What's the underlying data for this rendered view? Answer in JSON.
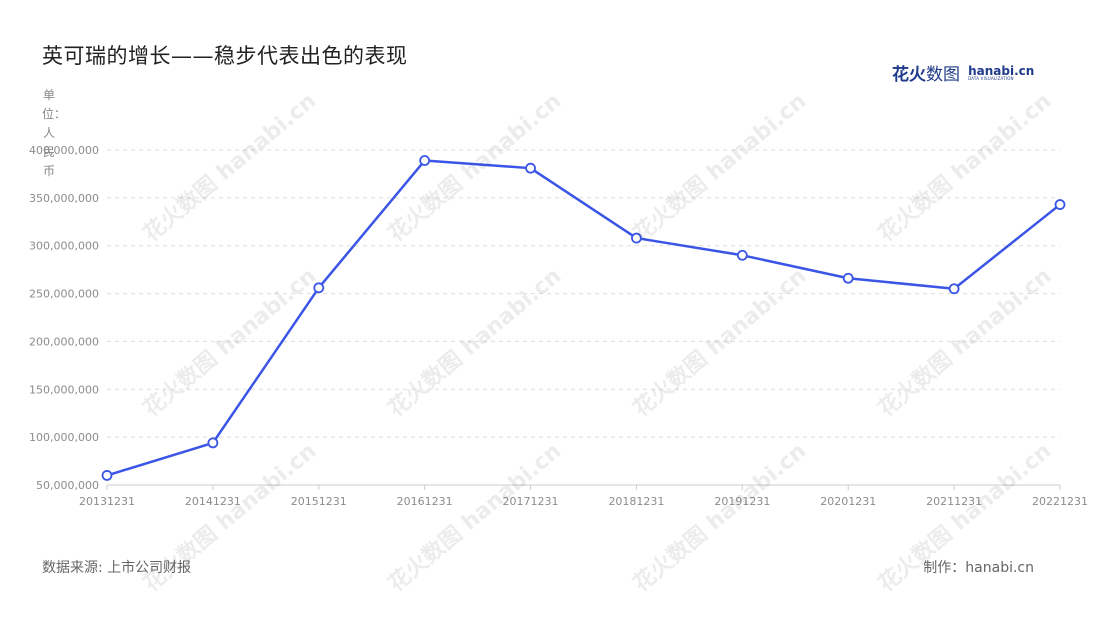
{
  "title": "英可瑞的增长——稳步代表出色的表现",
  "logo": {
    "cn_bold": "花火",
    "cn_thin": "数图",
    "en": "hanabi.cn",
    "en_sub": "DATA VISUALIZATION"
  },
  "unit_label": "单位：人民币",
  "source": "数据来源: 上市公司财报",
  "maker": "制作：hanabi.cn",
  "watermark": "花火数图 hanabi.cn",
  "colors": {
    "line": "#3b55e6",
    "grid": "#dddddd",
    "axis": "#cccccc"
  },
  "chart_data": {
    "type": "line",
    "categories": [
      "20131231",
      "20141231",
      "20151231",
      "20161231",
      "20171231",
      "20181231",
      "20191231",
      "20201231",
      "20211231",
      "20221231"
    ],
    "series": [
      {
        "values": [
          60000000,
          94000000,
          256000000,
          389000000,
          381000000,
          308000000,
          290000000,
          266000000,
          255000000,
          343000000
        ]
      }
    ],
    "ylim": [
      50000000,
      400000000
    ],
    "yticks": [
      50000000,
      100000000,
      150000000,
      200000000,
      250000000,
      300000000,
      350000000,
      400000000
    ],
    "ytick_labels": [
      "50,000,000",
      "100,000,000",
      "150,000,000",
      "200,000,000",
      "250,000,000",
      "300,000,000",
      "350,000,000",
      "400,000,000"
    ],
    "grid": true,
    "markers": "hollow-circle"
  }
}
